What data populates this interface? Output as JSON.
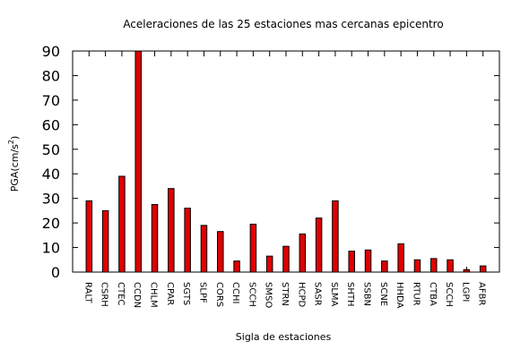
{
  "chart_data": {
    "type": "bar",
    "title": "Aceleraciones de las 25 estaciones mas cercanas epicentro",
    "xlabel": "Sigla de estaciones",
    "ylabel_main": "PGA(cm/s",
    "ylabel_sup": "2",
    "ylabel_close": ")",
    "ylim": [
      0,
      90
    ],
    "yticks": [
      0,
      10,
      20,
      30,
      40,
      50,
      60,
      70,
      80,
      90
    ],
    "grid": false,
    "bar_color": "#e00000",
    "categories": [
      "RALT",
      "CSRH",
      "CTEC",
      "CCDN",
      "CHLM",
      "CPAR",
      "SGTS",
      "SLPF",
      "CORS",
      "CCHI",
      "SCCH",
      "SMSO",
      "STRN",
      "HCPD",
      "SASR",
      "SLMA",
      "SHTH",
      "SSBN",
      "SCNE",
      "HHDA",
      "RTUR",
      "CTBA",
      "SCCH",
      "LGPI",
      "AFBR"
    ],
    "values": [
      29,
      25,
      39,
      90,
      27.5,
      34,
      26,
      19,
      16.5,
      4.5,
      19.5,
      6.5,
      10.5,
      15.5,
      22,
      29,
      8.5,
      9,
      4.5,
      11.5,
      5,
      5.5,
      5,
      1,
      2.5
    ]
  }
}
